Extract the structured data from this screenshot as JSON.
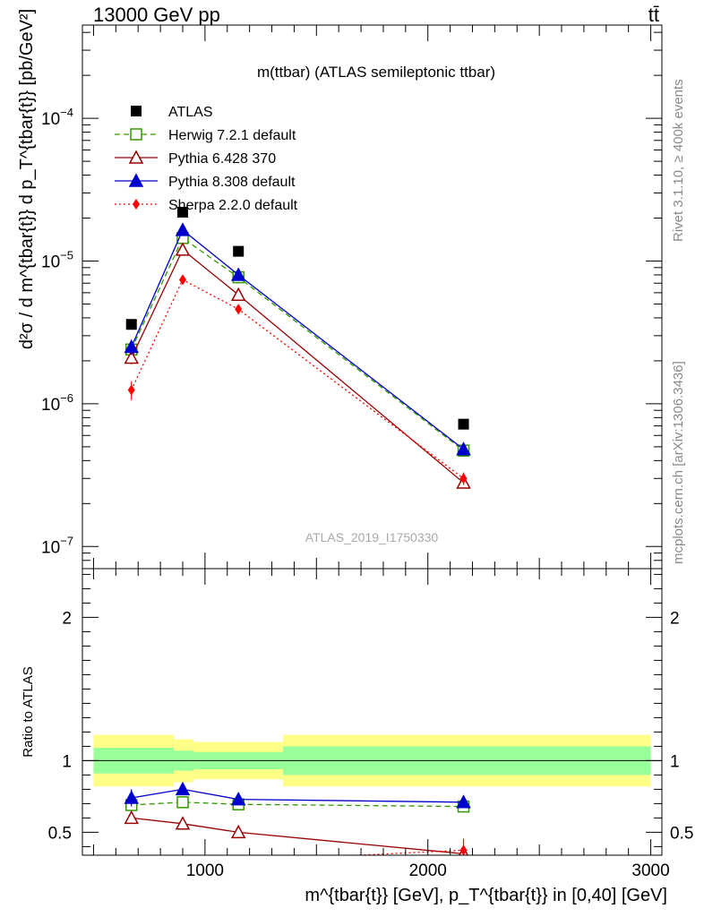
{
  "header": {
    "left": "13000 GeV pp",
    "right": "tt̄"
  },
  "side_labels": {
    "rivet": "Rivet 3.1.10, ≥ 400k events",
    "mcplots": "mcplots.cern.ch [arXiv:1306.3436]"
  },
  "chart_data": [
    {
      "type": "line",
      "title": "m(ttbar) (ATLAS semileptonic ttbar)",
      "watermark": "ATLAS_2019_I1750330",
      "ylabel": "d²σ / d m^{tbar{t}} d p_T^{tbar{t}} [pb/GeV²]",
      "yscale": "log",
      "xlim": [
        450,
        3050
      ],
      "ylim": [
        7e-08,
        0.00045
      ],
      "y_ticks": [
        {
          "value": 1e-07,
          "mantissa": "10",
          "exp": "−7"
        },
        {
          "value": 1e-06,
          "mantissa": "10",
          "exp": "−6"
        },
        {
          "value": 1e-05,
          "mantissa": "10",
          "exp": "−5"
        },
        {
          "value": 0.0001,
          "mantissa": "10",
          "exp": "−4"
        }
      ],
      "legend_position": "top-left",
      "x": [
        670,
        900,
        1150,
        2160
      ],
      "series": [
        {
          "name": "ATLAS",
          "color": "#000000",
          "marker": "square",
          "line": "none",
          "values": [
            3.6e-06,
            2.2e-05,
            1.17e-05,
            7.2e-07
          ],
          "errors": [
            0,
            0,
            0,
            0
          ]
        },
        {
          "name": "Herwig 7.2.1 default",
          "color": "#339900",
          "marker": "open-square",
          "line": "dashed",
          "values": [
            2.4e-06,
            1.45e-05,
            7.7e-06,
            4.7e-07
          ],
          "errors": [
            0.12,
            0.04,
            0.04,
            0.06
          ]
        },
        {
          "name": "Pythia 6.428 370",
          "color": "#990000",
          "marker": "open-triangle",
          "line": "solid",
          "values": [
            2.1e-06,
            1.2e-05,
            5.8e-06,
            2.8e-07
          ],
          "errors": [
            0.1,
            0.04,
            0.04,
            0.06
          ]
        },
        {
          "name": "Pythia 8.308 default",
          "color": "#0000cc",
          "marker": "triangle",
          "line": "solid",
          "values": [
            2.5e-06,
            1.65e-05,
            8e-06,
            4.8e-07
          ],
          "errors": [
            0.12,
            0.05,
            0.05,
            0.1
          ]
        },
        {
          "name": "Sherpa 2.2.0 default",
          "color": "#ff0000",
          "marker": "diamond",
          "line": "dotted",
          "values": [
            1.25e-06,
            7.4e-06,
            4.6e-06,
            3e-07
          ],
          "errors": [
            0.15,
            0.06,
            0.05,
            0.1
          ]
        }
      ]
    },
    {
      "type": "line",
      "ylabel": "Ratio to ATLAS",
      "xlabel": "m^{tbar{t}} [GeV], p_T^{tbar{t}} in [0,40] [GeV]",
      "yscale": "linear",
      "xlim": [
        450,
        3050
      ],
      "ylim": [
        0.34,
        2.34
      ],
      "x_ticks": [
        1000,
        2000,
        3000
      ],
      "y_ticks": [
        0.5,
        1,
        2
      ],
      "reference_line": 1,
      "uncertainty_bands": [
        {
          "x_range": [
            500,
            860
          ],
          "inner": [
            0.91,
            1.09
          ],
          "outer": [
            0.82,
            1.18
          ]
        },
        {
          "x_range": [
            860,
            950
          ],
          "inner": [
            0.93,
            1.07
          ],
          "outer": [
            0.85,
            1.15
          ]
        },
        {
          "x_range": [
            950,
            1350
          ],
          "inner": [
            0.94,
            1.06
          ],
          "outer": [
            0.87,
            1.13
          ]
        },
        {
          "x_range": [
            1350,
            3000
          ],
          "inner": [
            0.9,
            1.1
          ],
          "outer": [
            0.82,
            1.18
          ]
        }
      ],
      "x": [
        670,
        900,
        1150,
        2160
      ],
      "series": [
        {
          "name": "Herwig 7.2.1 default",
          "values": [
            0.69,
            0.71,
            0.695,
            0.68
          ],
          "errors": [
            0.03,
            0.03,
            0.02,
            0.03
          ]
        },
        {
          "name": "Pythia 6.428 370",
          "values": [
            0.6,
            0.56,
            0.5,
            0.35
          ],
          "errors": [
            0.04,
            0.03,
            0.02,
            0.02
          ]
        },
        {
          "name": "Pythia 8.308 default",
          "values": [
            0.74,
            0.8,
            0.73,
            0.71
          ],
          "errors": [
            0.06,
            0.04,
            0.03,
            0.04
          ]
        },
        {
          "name": "Sherpa 2.2.0 default",
          "values": [
            0.3,
            0.3,
            0.3,
            0.375
          ],
          "errors": [
            0.04,
            0.03,
            0.03,
            0.08
          ]
        }
      ]
    }
  ]
}
